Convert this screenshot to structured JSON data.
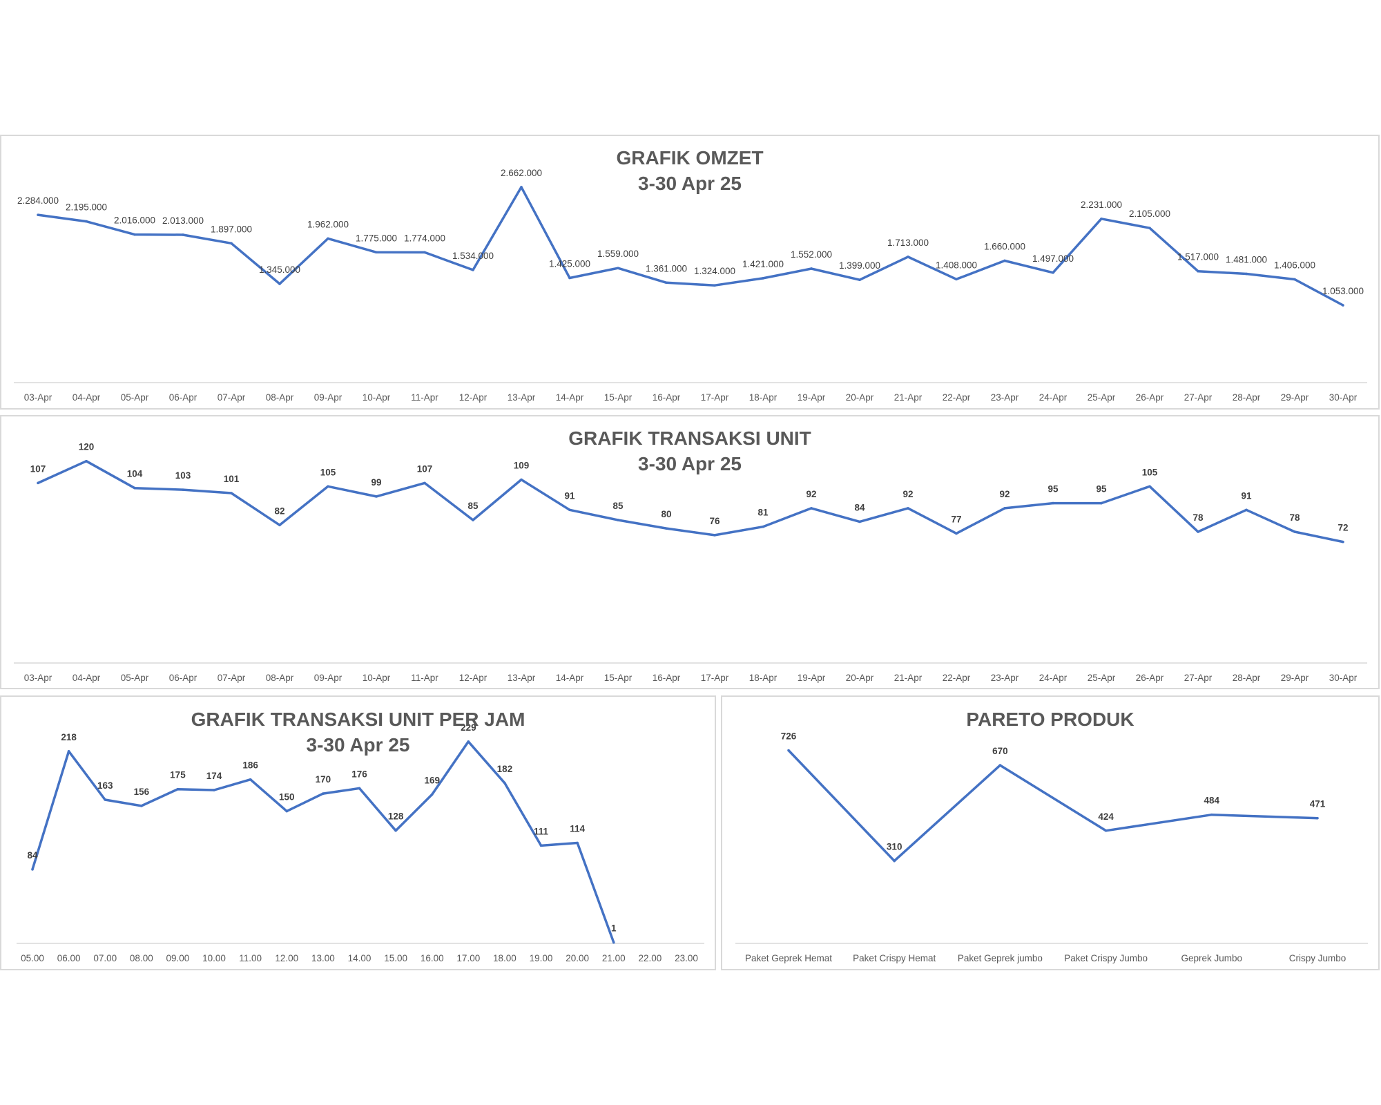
{
  "charts": {
    "omzet": {
      "title": "GRAFIK OMZET",
      "subtitle": "3-30 Apr 25"
    },
    "unit": {
      "title": "GRAFIK TRANSAKSI UNIT",
      "subtitle": "3-30 Apr 25"
    },
    "jam": {
      "title": "GRAFIK TRANSAKSI UNIT PER JAM",
      "subtitle": "3-30 Apr 25"
    },
    "pareto": {
      "title": "PARETO PRODUK"
    }
  },
  "chart_data": [
    {
      "type": "line",
      "title": "GRAFIK OMZET",
      "subtitle": "3-30 Apr 25",
      "xlabel": "",
      "ylabel": "",
      "x": [
        "03-Apr",
        "04-Apr",
        "05-Apr",
        "06-Apr",
        "07-Apr",
        "08-Apr",
        "09-Apr",
        "10-Apr",
        "11-Apr",
        "12-Apr",
        "13-Apr",
        "14-Apr",
        "15-Apr",
        "16-Apr",
        "17-Apr",
        "18-Apr",
        "19-Apr",
        "20-Apr",
        "21-Apr",
        "22-Apr",
        "23-Apr",
        "24-Apr",
        "25-Apr",
        "26-Apr",
        "27-Apr",
        "28-Apr",
        "29-Apr",
        "30-Apr"
      ],
      "values": [
        2284000,
        2195000,
        2016000,
        2013000,
        1897000,
        1345000,
        1962000,
        1775000,
        1774000,
        1534000,
        2662000,
        1425000,
        1559000,
        1361000,
        1324000,
        1421000,
        1552000,
        1399000,
        1713000,
        1408000,
        1660000,
        1497000,
        2231000,
        2105000,
        1517000,
        1481000,
        1406000,
        1053000
      ],
      "data_labels": [
        "2.284.000",
        "2.195.000",
        "2.016.000",
        "2.013.000",
        "1.897.000",
        "1.345.000",
        "1.962.000",
        "1.775.000",
        "1.774.000",
        "1.534.000",
        "2.662.000",
        "1.425.000",
        "1.559.000",
        "1.361.000",
        "1.324.000",
        "1.421.000",
        "1.552.000",
        "1.399.000",
        "1.713.000",
        "1.408.000",
        "1.660.000",
        "1.497.000",
        "2.231.000",
        "2.105.000",
        "1.517.000",
        "1.481.000",
        "1.406.000",
        "1.053.000"
      ],
      "ylim": [
        0,
        3000000
      ],
      "grid": false,
      "color": "#4472c4"
    },
    {
      "type": "line",
      "title": "GRAFIK TRANSAKSI UNIT",
      "subtitle": "3-30 Apr 25",
      "xlabel": "",
      "ylabel": "",
      "x": [
        "03-Apr",
        "04-Apr",
        "05-Apr",
        "06-Apr",
        "07-Apr",
        "08-Apr",
        "09-Apr",
        "10-Apr",
        "11-Apr",
        "12-Apr",
        "13-Apr",
        "14-Apr",
        "15-Apr",
        "16-Apr",
        "17-Apr",
        "18-Apr",
        "19-Apr",
        "20-Apr",
        "21-Apr",
        "22-Apr",
        "23-Apr",
        "24-Apr",
        "25-Apr",
        "26-Apr",
        "27-Apr",
        "28-Apr",
        "29-Apr",
        "30-Apr"
      ],
      "values": [
        107,
        120,
        104,
        103,
        101,
        82,
        105,
        99,
        107,
        85,
        109,
        91,
        85,
        80,
        76,
        81,
        92,
        84,
        92,
        77,
        92,
        95,
        95,
        105,
        78,
        91,
        78,
        72
      ],
      "ylim": [
        0,
        140
      ],
      "grid": false,
      "color": "#4472c4"
    },
    {
      "type": "line",
      "title": "GRAFIK TRANSAKSI UNIT PER JAM",
      "subtitle": "3-30 Apr 25",
      "xlabel": "",
      "ylabel": "",
      "x": [
        "05.00",
        "06.00",
        "07.00",
        "08.00",
        "09.00",
        "10.00",
        "11.00",
        "12.00",
        "13.00",
        "14.00",
        "15.00",
        "16.00",
        "17.00",
        "18.00",
        "19.00",
        "20.00",
        "21.00",
        "22.00",
        "23.00"
      ],
      "values": [
        84,
        218,
        163,
        156,
        175,
        174,
        186,
        150,
        170,
        176,
        128,
        169,
        229,
        182,
        111,
        114,
        1,
        null,
        null
      ],
      "ylim": [
        0,
        250
      ],
      "grid": false,
      "color": "#4472c4"
    },
    {
      "type": "line",
      "title": "PARETO PRODUK",
      "xlabel": "",
      "ylabel": "",
      "x": [
        "Paket Geprek Hemat",
        "Paket Crispy Hemat",
        "Paket Geprek jumbo",
        "Paket Crispy Jumbo",
        "Geprek Jumbo",
        "Crispy Jumbo"
      ],
      "values": [
        726,
        310,
        670,
        424,
        484,
        471
      ],
      "ylim": [
        0,
        800
      ],
      "grid": false,
      "color": "#4472c4"
    }
  ]
}
